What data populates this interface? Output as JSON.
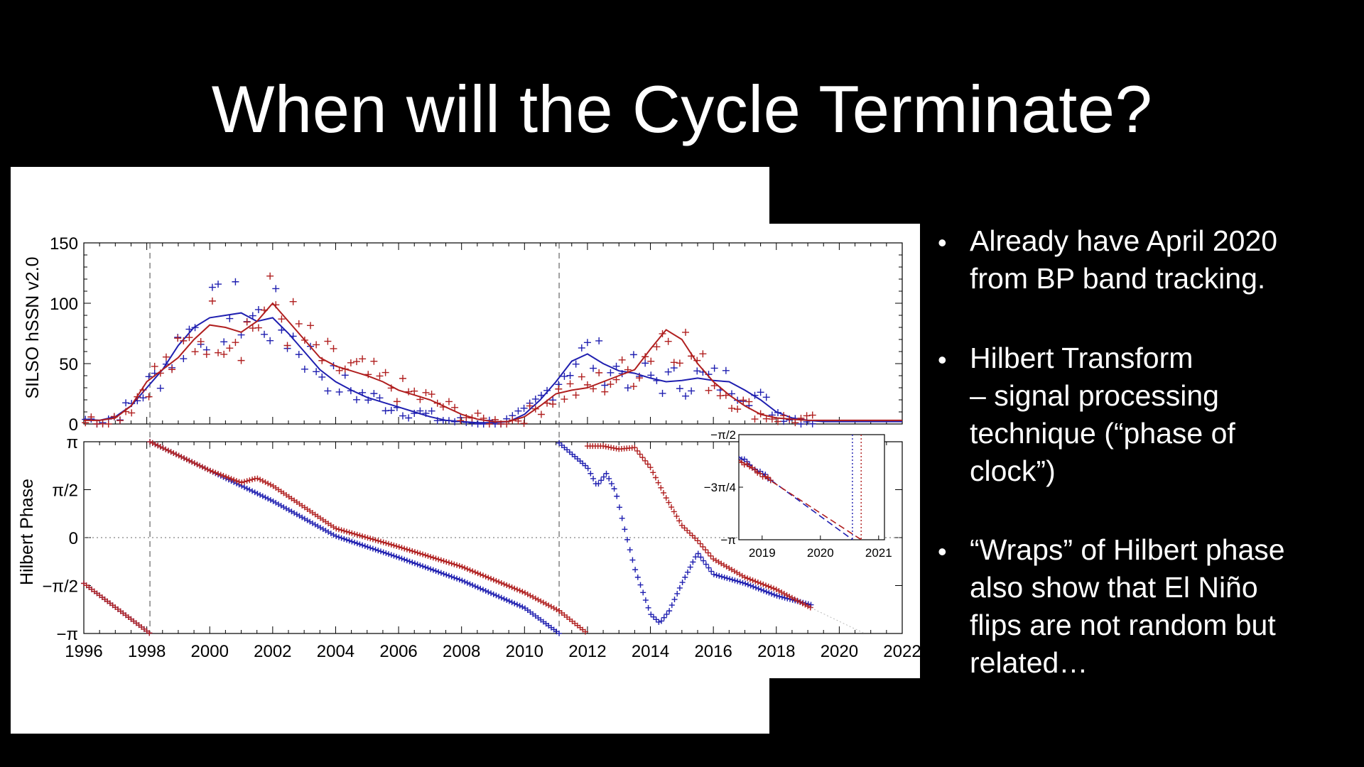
{
  "slide": {
    "title": "When will the Cycle Terminate?",
    "bullets": [
      {
        "lines": [
          "Already have April 2020",
          "from BP band tracking."
        ]
      },
      {
        "lines": [
          "Hilbert Transform",
          "– signal processing",
          "technique (“phase of",
          "clock”)"
        ]
      },
      {
        "lines": [
          "“Wraps” of Hilbert phase",
          "also show that El Niño",
          "flips are not random but",
          "related…"
        ]
      }
    ]
  },
  "chart_data": {
    "type": "scatter",
    "colors": {
      "blue": "#1f1fb0",
      "red": "#b01f1f",
      "grid": "#555555"
    },
    "x_axis": {
      "range": [
        1996,
        2022
      ],
      "ticks": [
        1996,
        1998,
        2000,
        2002,
        2004,
        2006,
        2008,
        2010,
        2012,
        2014,
        2016,
        2018,
        2020,
        2022
      ],
      "tick_labels": [
        "1996",
        "1998",
        "2000",
        "2002",
        "2004",
        "2006",
        "2008",
        "2010",
        "2012",
        "2014",
        "2016",
        "2018",
        "2020",
        "2022"
      ]
    },
    "vertical_markers": [
      1998.1,
      2011.1
    ],
    "top_panel": {
      "ylabel": "SILSO hSSN v2.0",
      "ylim": [
        0,
        150
      ],
      "ticks": [
        0,
        50,
        100,
        150
      ],
      "tick_labels": [
        "0",
        "50",
        "100",
        "150"
      ],
      "series": [
        {
          "name": "blue smoothed",
          "color": "blue",
          "x": [
            1996.0,
            1996.5,
            1997.0,
            1997.5,
            1998.0,
            1998.5,
            1999.0,
            1999.5,
            2000.0,
            2000.5,
            2001.0,
            2001.5,
            2002.0,
            2002.5,
            2003.0,
            2003.5,
            2004.0,
            2004.5,
            2005.0,
            2005.5,
            2006.0,
            2006.5,
            2007.0,
            2007.5,
            2008.0,
            2008.5,
            2009.0,
            2009.5,
            2010.0,
            2010.5,
            2011.0,
            2011.5,
            2012.0,
            2012.5,
            2013.0,
            2013.5,
            2014.0,
            2014.5,
            2015.0,
            2015.5,
            2016.0,
            2016.5,
            2017.0,
            2017.5,
            2018.0,
            2018.5,
            2019.0,
            2019.5,
            2020.0,
            2020.5,
            2021.0,
            2022.0
          ],
          "y": [
            4,
            3,
            6,
            15,
            30,
            45,
            65,
            80,
            88,
            90,
            92,
            85,
            88,
            75,
            60,
            45,
            35,
            28,
            22,
            18,
            14,
            10,
            6,
            3,
            2,
            1,
            1,
            2,
            8,
            20,
            35,
            52,
            58,
            50,
            44,
            42,
            38,
            35,
            36,
            38,
            36,
            35,
            28,
            20,
            10,
            5,
            3,
            2,
            2,
            2,
            2,
            2
          ]
        },
        {
          "name": "red smoothed",
          "color": "red",
          "x": [
            1996.0,
            1996.5,
            1997.0,
            1997.5,
            1998.0,
            1998.5,
            1999.0,
            1999.5,
            2000.0,
            2000.5,
            2001.0,
            2001.5,
            2002.0,
            2002.5,
            2003.0,
            2003.5,
            2004.0,
            2004.5,
            2005.0,
            2005.5,
            2006.0,
            2006.5,
            2007.0,
            2007.5,
            2008.0,
            2008.5,
            2009.0,
            2009.5,
            2010.0,
            2010.5,
            2011.0,
            2011.5,
            2012.0,
            2012.5,
            2013.0,
            2013.5,
            2014.0,
            2014.5,
            2015.0,
            2015.5,
            2016.0,
            2016.5,
            2017.0,
            2017.5,
            2018.0,
            2018.5,
            2019.0,
            2020.0,
            2021.0,
            2022.0
          ],
          "y": [
            3,
            3,
            5,
            15,
            35,
            45,
            55,
            70,
            82,
            80,
            76,
            85,
            100,
            85,
            70,
            55,
            48,
            44,
            40,
            35,
            28,
            24,
            20,
            14,
            8,
            4,
            2,
            2,
            6,
            15,
            25,
            28,
            30,
            35,
            40,
            45,
            62,
            78,
            70,
            50,
            35,
            24,
            15,
            8,
            5,
            4,
            3,
            3,
            3,
            3
          ]
        }
      ]
    },
    "bottom_panel": {
      "ylabel": "Hilbert Phase",
      "ylim": [
        -3.1416,
        3.1416
      ],
      "ticks": [
        -3.1416,
        -1.5708,
        0,
        1.5708,
        3.1416
      ],
      "tick_labels": [
        "−π",
        "−π/2",
        "0",
        "π/2",
        "π"
      ],
      "series": [
        {
          "name": "blue phase",
          "color": "blue",
          "segments": [
            {
              "x": [
                1996.0,
                1998.1
              ],
              "y": [
                -1.5,
                -3.14
              ]
            },
            {
              "x": [
                1998.1,
                2000,
                2002,
                2004,
                2006,
                2008,
                2010,
                2011.1
              ],
              "y": [
                3.14,
                2.2,
                1.2,
                0.05,
                -0.65,
                -1.4,
                -2.3,
                -3.14
              ]
            },
            {
              "x": [
                2011.1,
                2012.0,
                2012.3,
                2012.6,
                2012.9,
                2013.2,
                2013.5,
                2014.0,
                2014.3,
                2014.6,
                2015.0,
                2015.5,
                2016.0,
                2017.0,
                2018.0,
                2019.1
              ],
              "y": [
                3.1,
                2.3,
                1.7,
                2.1,
                1.5,
                0.2,
                -1.0,
                -2.5,
                -2.8,
                -2.4,
                -1.5,
                -0.5,
                -1.2,
                -1.5,
                -1.9,
                -2.2
              ]
            }
          ]
        },
        {
          "name": "red phase",
          "color": "red",
          "segments": [
            {
              "x": [
                1996.0,
                1998.1
              ],
              "y": [
                -1.5,
                -3.14
              ]
            },
            {
              "x": [
                1998.1,
                2000,
                2001.0,
                2001.5,
                2002.0,
                2004,
                2006,
                2008,
                2010,
                2011.1
              ],
              "y": [
                3.14,
                2.2,
                1.8,
                1.95,
                1.7,
                0.3,
                -0.3,
                -0.95,
                -1.8,
                -2.4
              ]
            },
            {
              "x": [
                2011.1,
                2012.0
              ],
              "y": [
                -2.4,
                -3.14
              ]
            },
            {
              "x": [
                2012.0,
                2012.5,
                2013.0,
                2013.5,
                2014.0,
                2014.5,
                2015.0,
                2015.5,
                2016.0,
                2017.0,
                2018.0,
                2019.1
              ],
              "y": [
                3.0,
                3.0,
                2.9,
                2.95,
                2.3,
                1.3,
                0.4,
                -0.1,
                -0.7,
                -1.3,
                -1.7,
                -2.3
              ]
            }
          ]
        }
      ]
    },
    "inset": {
      "x_range": [
        2018.6,
        2021.1
      ],
      "x_ticks": [
        2019,
        2020,
        2021
      ],
      "x_tick_labels": [
        "2019",
        "2020",
        "2021"
      ],
      "ylim": [
        -3.1416,
        -1.5708
      ],
      "y_ticks": [
        -3.1416,
        -2.3562,
        -1.5708
      ],
      "y_tick_labels": [
        "−π",
        "−3π/4",
        "−π/2"
      ],
      "projections": [
        {
          "color": "blue",
          "x": [
            2018.6,
            2020.55
          ],
          "y": [
            -1.9,
            -3.14
          ]
        },
        {
          "color": "red",
          "x": [
            2018.6,
            2020.7
          ],
          "y": [
            -1.95,
            -3.14
          ]
        }
      ],
      "termination_markers": [
        {
          "color": "blue",
          "x": 2020.55
        },
        {
          "color": "red",
          "x": 2020.7
        }
      ]
    }
  }
}
